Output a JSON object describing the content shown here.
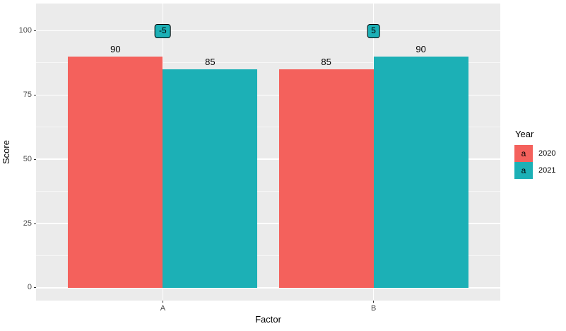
{
  "figure": {
    "background": "#FFFFFF",
    "panel_background": "#EBEBEB",
    "grid_major_color": "#FFFFFF",
    "grid_minor_color": "#FFFFFF",
    "tick_mark_color": "#333333",
    "tick_label_color": "#4D4D4D"
  },
  "chart_data": {
    "type": "bar",
    "title": "",
    "xlabel": "Factor",
    "ylabel": "Score",
    "categories": [
      "A",
      "B"
    ],
    "series": [
      {
        "name": "2020",
        "color": "#F4615C",
        "values": [
          90,
          85
        ]
      },
      {
        "name": "2021",
        "color": "#1CB0B6",
        "values": [
          85,
          90
        ]
      }
    ],
    "bar_value_labels": [
      [
        "90",
        "85"
      ],
      [
        "85",
        "90"
      ]
    ],
    "diff_labels": {
      "values": [
        "-5",
        "5"
      ],
      "at_y": 100,
      "fill": "#1CB0B6",
      "border_color": "#000000",
      "text_color": "#000000"
    },
    "y_ticks": [
      "0",
      "25",
      "50",
      "75",
      "100"
    ],
    "y_tick_values": [
      0,
      25,
      50,
      75,
      100
    ],
    "y_minor_tick_values": [
      12.5,
      37.5,
      62.5,
      87.5
    ],
    "ylim": [
      -5,
      110.6
    ],
    "x_positions": [
      0.273,
      0.727
    ],
    "bar_width_frac": 0.204,
    "grid": true,
    "legend": {
      "title": "Year",
      "position": "right",
      "key_glyph": "a",
      "items": [
        {
          "label": "2020",
          "color": "#F4615C"
        },
        {
          "label": "2021",
          "color": "#1CB0B6"
        }
      ]
    }
  }
}
